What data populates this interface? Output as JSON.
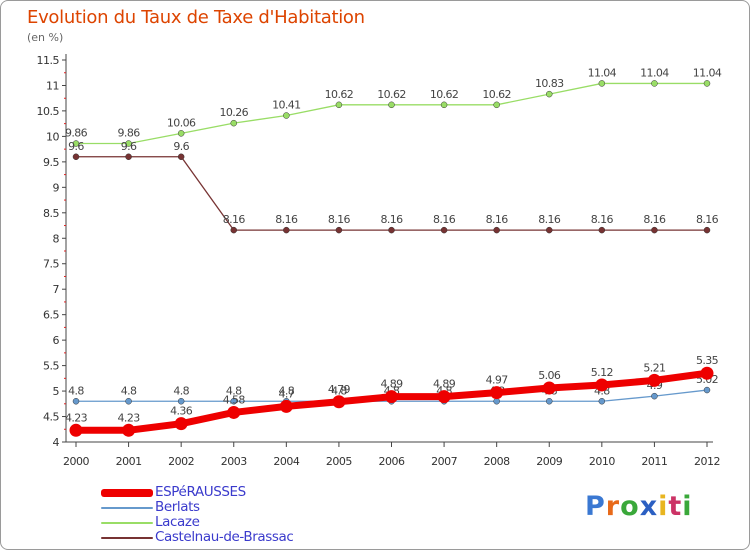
{
  "header": {
    "title": "Evolution du Taux de Taxe d'Habitation",
    "unit": "(en %)"
  },
  "chart_data": {
    "type": "line",
    "title": "Evolution du Taux de Taxe d'Habitation",
    "ylabel": "(en %)",
    "xlabel": "",
    "x": [
      "2000",
      "2001",
      "2002",
      "2003",
      "2004",
      "2005",
      "2006",
      "2007",
      "2008",
      "2009",
      "2010",
      "2011",
      "2012"
    ],
    "ylim": [
      4,
      11.5
    ],
    "yticks": [
      "4",
      "4.5",
      "5",
      "5.5",
      "6",
      "6.5",
      "7",
      "7.5",
      "8",
      "8.5",
      "9",
      "9.5",
      "10",
      "10.5",
      "11",
      "11.5"
    ],
    "grid": false,
    "legend_position": "bottom-left",
    "series": [
      {
        "name": "Lacaze",
        "color": "#99dd66",
        "values": [
          9.86,
          9.86,
          10.06,
          10.26,
          10.41,
          10.62,
          10.62,
          10.62,
          10.62,
          10.83,
          11.04,
          11.04,
          11.04
        ]
      },
      {
        "name": "Castelnau-de-Brassac",
        "color": "#773333",
        "values": [
          9.6,
          9.6,
          9.6,
          8.16,
          8.16,
          8.16,
          8.16,
          8.16,
          8.16,
          8.16,
          8.16,
          8.16,
          8.16
        ]
      },
      {
        "name": "Berlats",
        "color": "#6699cc",
        "values": [
          4.8,
          4.8,
          4.8,
          4.8,
          4.8,
          4.8,
          4.8,
          4.8,
          4.8,
          4.8,
          4.8,
          4.9,
          5.02
        ]
      },
      {
        "name": "ESPéRAUSSES",
        "color": "#ee0000",
        "values": [
          4.23,
          4.23,
          4.36,
          4.58,
          4.7,
          4.79,
          4.89,
          4.89,
          4.97,
          5.06,
          5.12,
          5.21,
          5.35
        ]
      }
    ],
    "value_labels": {
      "Lacaze": [
        "9.86",
        "9.86",
        "10.06",
        "10.26",
        "10.41",
        "10.62",
        "10.62",
        "10.62",
        "10.62",
        "10.83",
        "11.04",
        "11.04",
        "11.04"
      ],
      "Castelnau-de-Brassac": [
        "9.6",
        "9.6",
        "9.6",
        "8.16",
        "8.16",
        "8.16",
        "8.16",
        "8.16",
        "8.16",
        "8.16",
        "8.16",
        "8.16",
        "8.16"
      ],
      "Berlats": [
        "4.8",
        "4.8",
        "4.8",
        "4.8",
        "4.8",
        "4.8",
        "4.8",
        "4.8",
        "4.8",
        "4.8",
        "4.8",
        "4.9",
        "5.02"
      ],
      "ESPéRAUSSES": [
        "4.23",
        "4.23",
        "4.36",
        "4.58",
        "4.7",
        "4.79",
        "4.89",
        "4.89",
        "4.97",
        "5.06",
        "5.12",
        "5.21",
        "5.35"
      ]
    }
  },
  "legend": {
    "items": [
      {
        "label": "ESPéRAUSSES",
        "color": "#ee0000"
      },
      {
        "label": "Berlats",
        "color": "#6699cc"
      },
      {
        "label": "Lacaze",
        "color": "#99dd66"
      },
      {
        "label": "Castelnau-de-Brassac",
        "color": "#773333"
      }
    ]
  },
  "logo": {
    "text": "Proxiti",
    "letter_colors": [
      "#3a78d2",
      "#e86a1a",
      "#3aa83a",
      "#2b5fc2",
      "#e8b520",
      "#cc3366",
      "#3aa83a"
    ]
  }
}
